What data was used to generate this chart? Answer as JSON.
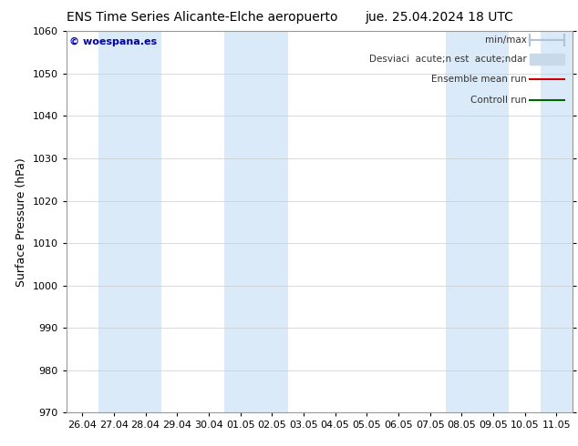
{
  "title_left": "ENS Time Series Alicante-Elche aeropuerto",
  "title_right": "jue. 25.04.2024 18 UTC",
  "ylabel": "Surface Pressure (hPa)",
  "ylim": [
    970,
    1060
  ],
  "yticks": [
    970,
    980,
    990,
    1000,
    1010,
    1020,
    1030,
    1040,
    1050,
    1060
  ],
  "x_labels": [
    "26.04",
    "27.04",
    "28.04",
    "29.04",
    "30.04",
    "01.05",
    "02.05",
    "03.05",
    "04.05",
    "05.05",
    "06.05",
    "07.05",
    "08.05",
    "09.05",
    "10.05",
    "11.05"
  ],
  "bg_color": "#ffffff",
  "plot_bg_color": "#ffffff",
  "shaded_bands": [
    1,
    2,
    5,
    6,
    12,
    13,
    15
  ],
  "shaded_color": "#daeaf8",
  "watermark": "© woespana.es",
  "watermark_color": "#0000aa",
  "legend_minmax_color": "#b0c4d8",
  "legend_std_color": "#c8daea",
  "legend_ensemble_color": "#cc0000",
  "legend_control_color": "#006600",
  "title_fontsize": 10,
  "axis_label_fontsize": 9,
  "tick_fontsize": 8,
  "legend_fontsize": 7.5
}
